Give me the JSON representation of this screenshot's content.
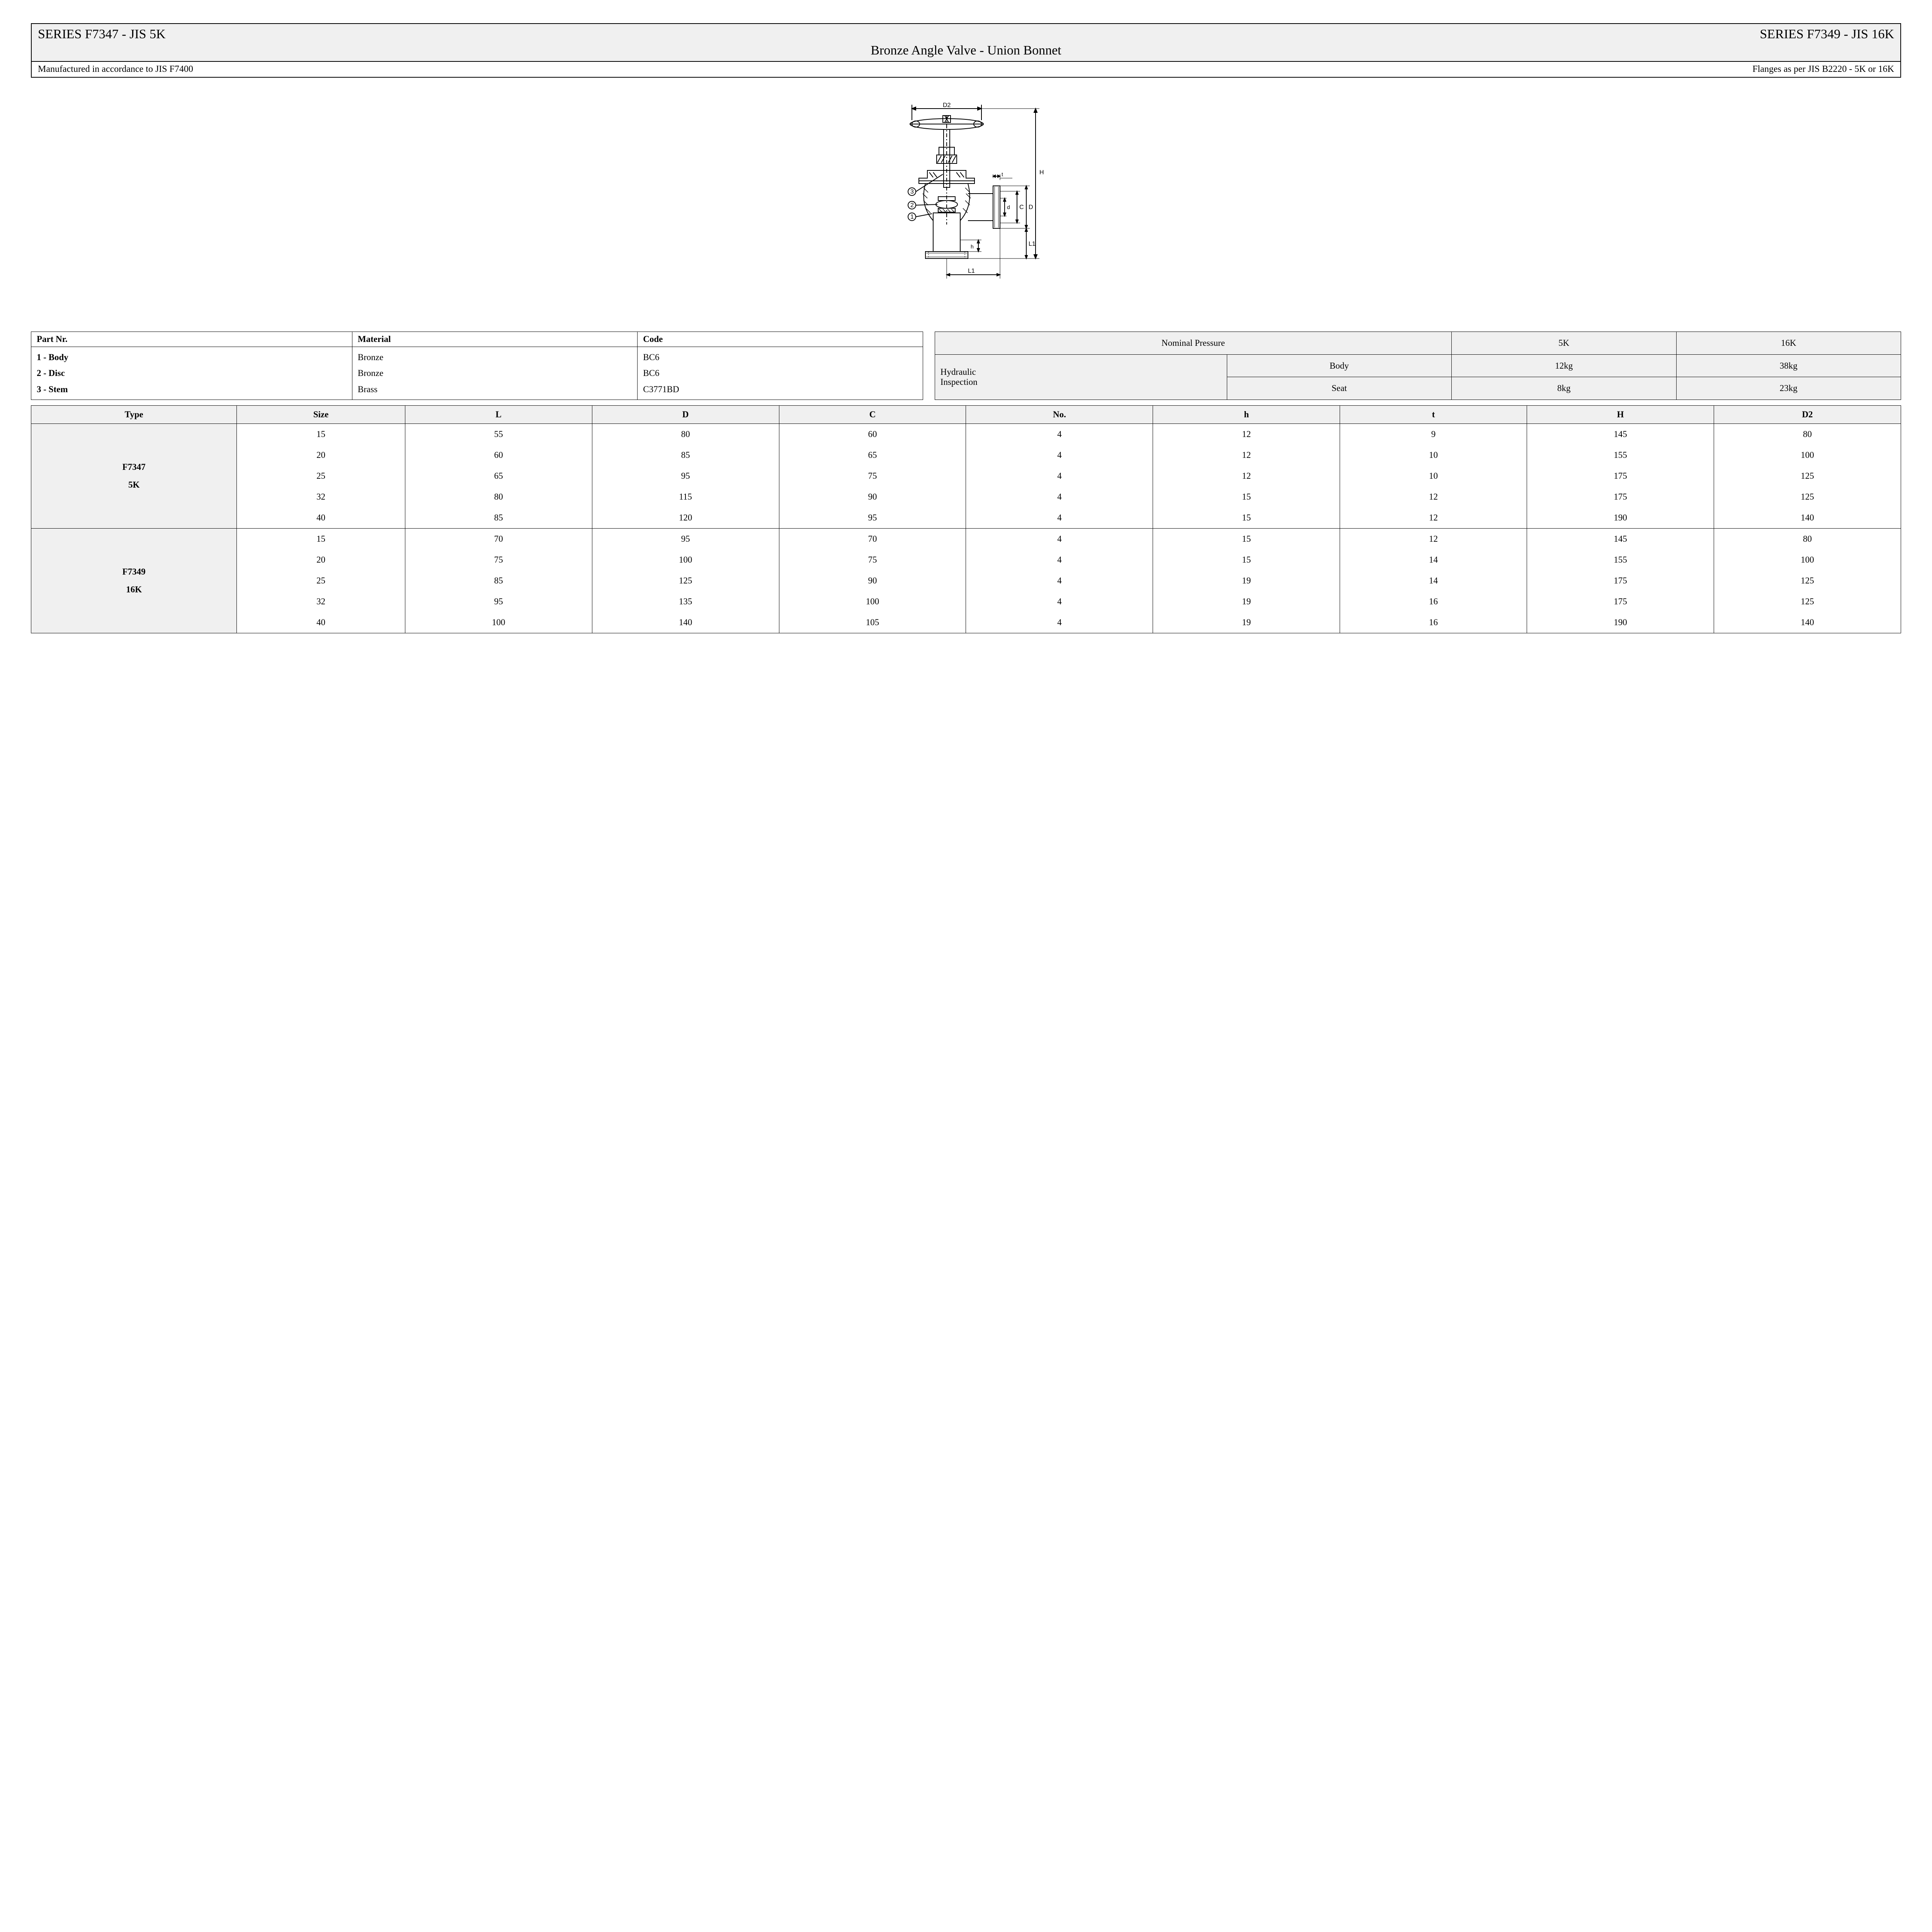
{
  "header": {
    "left": "SERIES F7347 - JIS 5K",
    "right": "SERIES F7349 - JIS 16K",
    "subtitle": "Bronze Angle Valve - Union Bonnet"
  },
  "notes": {
    "left": "Manufactured in accordance to JIS F7400",
    "right": "Flanges as per JIS B2220 - 5K or 16K"
  },
  "diagram": {
    "labels": {
      "D2": "D2",
      "H": "H",
      "t": "t",
      "d": "d",
      "C": "C",
      "D": "D",
      "L1_side": "L1",
      "h": "h",
      "L1_bottom": "L1"
    },
    "callouts": [
      "1",
      "2",
      "3"
    ],
    "stroke": "#000000",
    "fill": "#ffffff"
  },
  "parts_table": {
    "headers": [
      "Part Nr.",
      "Material",
      "Code"
    ],
    "rows": [
      {
        "nr": "1  -  Body",
        "material": "Bronze",
        "code": "BC6"
      },
      {
        "nr": "2  -  Disc",
        "material": "Bronze",
        "code": "BC6"
      },
      {
        "nr": "3  -  Stem",
        "material": "Brass",
        "code": "C3771BD"
      }
    ]
  },
  "pressure_table": {
    "title": "Nominal Pressure",
    "cols": [
      "5K",
      "16K"
    ],
    "group_label_line1": "Hydraulic",
    "group_label_line2": "Inspection",
    "rows": [
      {
        "label": "Body",
        "v5k": "12kg",
        "v16k": "38kg"
      },
      {
        "label": "Seat",
        "v5k": "8kg",
        "v16k": "23kg"
      }
    ]
  },
  "dims_table": {
    "headers": [
      "Type",
      "Size",
      "L",
      "D",
      "C",
      "No.",
      "h",
      "t",
      "H",
      "D2"
    ],
    "groups": [
      {
        "type_lines": [
          "F7347",
          "5K"
        ],
        "rows": [
          [
            "15",
            "55",
            "80",
            "60",
            "4",
            "12",
            "9",
            "145",
            "80"
          ],
          [
            "20",
            "60",
            "85",
            "65",
            "4",
            "12",
            "10",
            "155",
            "100"
          ],
          [
            "25",
            "65",
            "95",
            "75",
            "4",
            "12",
            "10",
            "175",
            "125"
          ],
          [
            "32",
            "80",
            "115",
            "90",
            "4",
            "15",
            "12",
            "175",
            "125"
          ],
          [
            "40",
            "85",
            "120",
            "95",
            "4",
            "15",
            "12",
            "190",
            "140"
          ]
        ]
      },
      {
        "type_lines": [
          "F7349",
          "16K"
        ],
        "rows": [
          [
            "15",
            "70",
            "95",
            "70",
            "4",
            "15",
            "12",
            "145",
            "80"
          ],
          [
            "20",
            "75",
            "100",
            "75",
            "4",
            "15",
            "14",
            "155",
            "100"
          ],
          [
            "25",
            "85",
            "125",
            "90",
            "4",
            "19",
            "14",
            "175",
            "125"
          ],
          [
            "32",
            "95",
            "135",
            "100",
            "4",
            "19",
            "16",
            "175",
            "125"
          ],
          [
            "40",
            "100",
            "140",
            "105",
            "4",
            "19",
            "16",
            "190",
            "140"
          ]
        ]
      }
    ]
  },
  "colors": {
    "page_bg": "#ffffff",
    "header_bg": "#f0f0f0",
    "border": "#000000",
    "text": "#000000"
  }
}
